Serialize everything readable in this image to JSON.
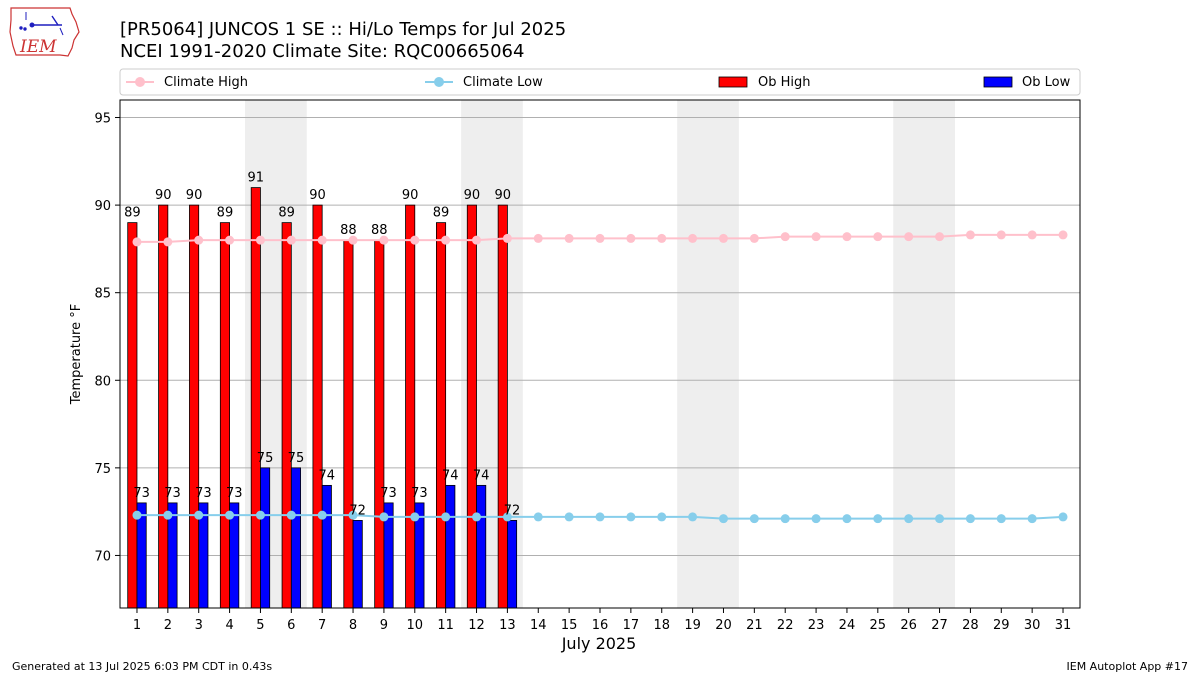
{
  "logo": {
    "text": "IEM",
    "colors": {
      "outline": "#cc3333",
      "text": "#cc3333",
      "glyph": "#1f1fbf"
    }
  },
  "header": {
    "title": "[PR5064] JUNCOS 1 SE :: Hi/Lo Temps for Jul 2025",
    "subtitle": "NCEI 1991-2020 Climate Site: RQC00665064"
  },
  "footer": {
    "generated": "Generated at 13 Jul 2025 6:03 PM CDT in 0.43s",
    "app": "IEM Autoplot App #17"
  },
  "chart_data": {
    "type": "bar",
    "xlabel": "July 2025",
    "ylabel": "Temperature °F",
    "ylim": [
      67,
      96
    ],
    "yticks": [
      70,
      75,
      80,
      85,
      90,
      95
    ],
    "grid": "horizontal",
    "legend_position": "top",
    "days": [
      1,
      2,
      3,
      4,
      5,
      6,
      7,
      8,
      9,
      10,
      11,
      12,
      13,
      14,
      15,
      16,
      17,
      18,
      19,
      20,
      21,
      22,
      23,
      24,
      25,
      26,
      27,
      28,
      29,
      30,
      31
    ],
    "weekend_shading": [
      [
        5,
        6
      ],
      [
        12,
        13
      ],
      [
        19,
        20
      ],
      [
        26,
        27
      ]
    ],
    "series": [
      {
        "name": "Climate High",
        "kind": "line",
        "color": "#ffc0cb",
        "values": [
          87.9,
          87.9,
          88.0,
          88.0,
          88.0,
          88.0,
          88.0,
          88.0,
          88.0,
          88.0,
          88.0,
          88.0,
          88.1,
          88.1,
          88.1,
          88.1,
          88.1,
          88.1,
          88.1,
          88.1,
          88.1,
          88.2,
          88.2,
          88.2,
          88.2,
          88.2,
          88.2,
          88.3,
          88.3,
          88.3,
          88.3
        ]
      },
      {
        "name": "Climate Low",
        "kind": "line",
        "color": "#87ceeb",
        "values": [
          72.3,
          72.3,
          72.3,
          72.3,
          72.3,
          72.3,
          72.3,
          72.3,
          72.2,
          72.2,
          72.2,
          72.2,
          72.2,
          72.2,
          72.2,
          72.2,
          72.2,
          72.2,
          72.2,
          72.1,
          72.1,
          72.1,
          72.1,
          72.1,
          72.1,
          72.1,
          72.1,
          72.1,
          72.1,
          72.1,
          72.2
        ]
      },
      {
        "name": "Ob High",
        "kind": "bar",
        "color": "#ff0000",
        "values": [
          89,
          90,
          90,
          89,
          91,
          89,
          90,
          88,
          88,
          90,
          89,
          90,
          90
        ]
      },
      {
        "name": "Ob Low",
        "kind": "bar",
        "color": "#0000ff",
        "values": [
          73,
          73,
          73,
          73,
          75,
          75,
          74,
          72,
          73,
          73,
          74,
          74,
          72
        ]
      }
    ]
  }
}
